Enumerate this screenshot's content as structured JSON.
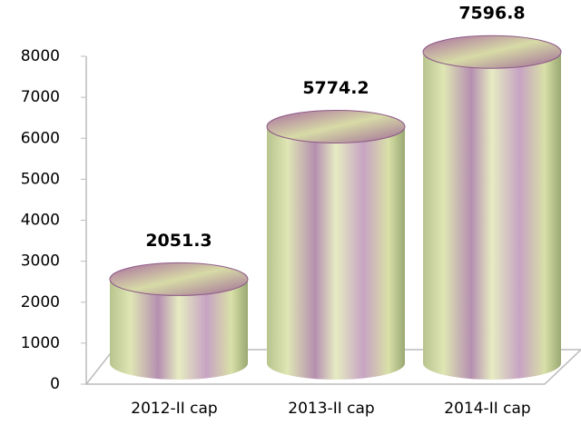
{
  "chart_data": {
    "type": "bar",
    "categories": [
      "2012-II cap",
      "2013-II cap",
      "2014-II cap"
    ],
    "values": [
      2051.3,
      5774.2,
      7596.8
    ],
    "ylim": [
      0,
      8000
    ],
    "yticks": [
      0,
      1000,
      2000,
      3000,
      4000,
      5000,
      6000,
      7000,
      8000
    ],
    "grid": false
  }
}
